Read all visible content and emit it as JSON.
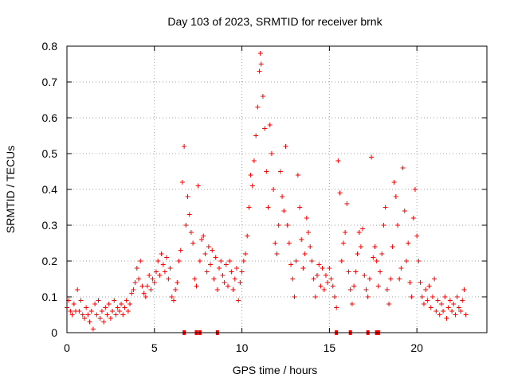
{
  "chart_data": {
    "type": "scatter",
    "title": "Day 103 of 2023, SRMTID for receiver brnk",
    "xlabel": "GPS time / hours",
    "ylabel": "SRMTID / TECUs",
    "xlim": [
      0,
      24
    ],
    "ylim": [
      0,
      0.8
    ],
    "xticks": [
      0,
      5,
      10,
      15,
      20
    ],
    "xtick_labels": [
      "0",
      "5",
      "10",
      "15",
      "20"
    ],
    "yticks": [
      0,
      0.1,
      0.2,
      0.3,
      0.4,
      0.5,
      0.6,
      0.7,
      0.8
    ],
    "ytick_labels": [
      "0",
      "0.1",
      "0.2",
      "0.3",
      "0.4",
      "0.5",
      "0.6",
      "0.7",
      "0.8"
    ],
    "grid": true,
    "color": "#ff0000",
    "marker": "plus",
    "series": [
      {
        "name": "SRMTID",
        "points": [
          [
            0.0,
            0.07
          ],
          [
            0.1,
            0.09
          ],
          [
            0.2,
            0.06
          ],
          [
            0.3,
            0.05
          ],
          [
            0.4,
            0.08
          ],
          [
            0.5,
            0.06
          ],
          [
            0.6,
            0.12
          ],
          [
            0.7,
            0.06
          ],
          [
            0.8,
            0.09
          ],
          [
            0.9,
            0.05
          ],
          [
            1.0,
            0.04
          ],
          [
            1.1,
            0.07
          ],
          [
            1.2,
            0.05
          ],
          [
            1.3,
            0.03
          ],
          [
            1.4,
            0.06
          ],
          [
            1.5,
            0.01
          ],
          [
            1.6,
            0.08
          ],
          [
            1.7,
            0.05
          ],
          [
            1.8,
            0.09
          ],
          [
            1.9,
            0.04
          ],
          [
            2.0,
            0.06
          ],
          [
            2.1,
            0.03
          ],
          [
            2.2,
            0.07
          ],
          [
            2.3,
            0.05
          ],
          [
            2.4,
            0.08
          ],
          [
            2.5,
            0.04
          ],
          [
            2.6,
            0.06
          ],
          [
            2.7,
            0.09
          ],
          [
            2.8,
            0.05
          ],
          [
            2.9,
            0.07
          ],
          [
            3.0,
            0.06
          ],
          [
            3.1,
            0.08
          ],
          [
            3.2,
            0.05
          ],
          [
            3.3,
            0.07
          ],
          [
            3.4,
            0.09
          ],
          [
            3.5,
            0.06
          ],
          [
            3.6,
            0.08
          ],
          [
            3.7,
            0.11
          ],
          [
            3.8,
            0.12
          ],
          [
            3.9,
            0.14
          ],
          [
            4.0,
            0.18
          ],
          [
            4.1,
            0.15
          ],
          [
            4.2,
            0.2
          ],
          [
            4.3,
            0.13
          ],
          [
            4.4,
            0.11
          ],
          [
            4.5,
            0.1
          ],
          [
            4.6,
            0.13
          ],
          [
            4.7,
            0.16
          ],
          [
            4.8,
            0.12
          ],
          [
            4.9,
            0.15
          ],
          [
            5.0,
            0.14
          ],
          [
            5.1,
            0.17
          ],
          [
            5.2,
            0.2
          ],
          [
            5.3,
            0.16
          ],
          [
            5.4,
            0.22
          ],
          [
            5.5,
            0.19
          ],
          [
            5.6,
            0.17
          ],
          [
            5.7,
            0.21
          ],
          [
            5.8,
            0.15
          ],
          [
            5.9,
            0.18
          ],
          [
            6.0,
            0.1
          ],
          [
            6.1,
            0.09
          ],
          [
            6.2,
            0.12
          ],
          [
            6.3,
            0.14
          ],
          [
            6.4,
            0.2
          ],
          [
            6.5,
            0.23
          ],
          [
            6.6,
            0.42
          ],
          [
            6.7,
            0.52
          ],
          [
            6.8,
            0.3
          ],
          [
            6.9,
            0.38
          ],
          [
            7.0,
            0.33
          ],
          [
            7.1,
            0.28
          ],
          [
            7.2,
            0.25
          ],
          [
            7.3,
            0.15
          ],
          [
            7.4,
            0.13
          ],
          [
            7.5,
            0.41
          ],
          [
            7.6,
            0.2
          ],
          [
            7.7,
            0.26
          ],
          [
            7.8,
            0.27
          ],
          [
            7.9,
            0.22
          ],
          [
            8.0,
            0.17
          ],
          [
            8.1,
            0.24
          ],
          [
            8.2,
            0.19
          ],
          [
            8.3,
            0.23
          ],
          [
            8.4,
            0.15
          ],
          [
            8.5,
            0.21
          ],
          [
            8.6,
            0.12
          ],
          [
            8.7,
            0.18
          ],
          [
            8.8,
            0.2
          ],
          [
            8.9,
            0.16
          ],
          [
            9.0,
            0.14
          ],
          [
            9.1,
            0.19
          ],
          [
            9.2,
            0.13
          ],
          [
            9.3,
            0.2
          ],
          [
            9.4,
            0.17
          ],
          [
            9.5,
            0.12
          ],
          [
            9.6,
            0.15
          ],
          [
            9.7,
            0.18
          ],
          [
            9.8,
            0.09
          ],
          [
            9.9,
            0.14
          ],
          [
            10.0,
            0.17
          ],
          [
            10.1,
            0.2
          ],
          [
            10.2,
            0.22
          ],
          [
            10.3,
            0.27
          ],
          [
            10.4,
            0.35
          ],
          [
            10.5,
            0.44
          ],
          [
            10.6,
            0.41
          ],
          [
            10.7,
            0.48
          ],
          [
            10.8,
            0.55
          ],
          [
            10.9,
            0.63
          ],
          [
            11.0,
            0.73
          ],
          [
            11.05,
            0.78
          ],
          [
            11.1,
            0.75
          ],
          [
            11.2,
            0.66
          ],
          [
            11.3,
            0.57
          ],
          [
            11.4,
            0.45
          ],
          [
            11.5,
            0.35
          ],
          [
            11.6,
            0.58
          ],
          [
            11.7,
            0.5
          ],
          [
            11.8,
            0.4
          ],
          [
            11.9,
            0.25
          ],
          [
            12.0,
            0.22
          ],
          [
            12.1,
            0.3
          ],
          [
            12.2,
            0.45
          ],
          [
            12.3,
            0.38
          ],
          [
            12.4,
            0.34
          ],
          [
            12.5,
            0.52
          ],
          [
            12.6,
            0.3
          ],
          [
            12.7,
            0.25
          ],
          [
            12.8,
            0.19
          ],
          [
            12.9,
            0.15
          ],
          [
            13.0,
            0.1
          ],
          [
            13.1,
            0.2
          ],
          [
            13.2,
            0.44
          ],
          [
            13.3,
            0.35
          ],
          [
            13.4,
            0.26
          ],
          [
            13.5,
            0.18
          ],
          [
            13.6,
            0.22
          ],
          [
            13.7,
            0.32
          ],
          [
            13.8,
            0.28
          ],
          [
            13.9,
            0.24
          ],
          [
            14.0,
            0.2
          ],
          [
            14.1,
            0.15
          ],
          [
            14.2,
            0.1
          ],
          [
            14.3,
            0.16
          ],
          [
            14.4,
            0.19
          ],
          [
            14.5,
            0.13
          ],
          [
            14.6,
            0.18
          ],
          [
            14.7,
            0.12
          ],
          [
            14.8,
            0.16
          ],
          [
            14.9,
            0.14
          ],
          [
            15.0,
            0.18
          ],
          [
            15.1,
            0.15
          ],
          [
            15.2,
            0.13
          ],
          [
            15.3,
            0.1
          ],
          [
            15.4,
            0.07
          ],
          [
            15.5,
            0.48
          ],
          [
            15.6,
            0.39
          ],
          [
            15.7,
            0.2
          ],
          [
            15.8,
            0.25
          ],
          [
            15.9,
            0.28
          ],
          [
            16.0,
            0.36
          ],
          [
            16.1,
            0.17
          ],
          [
            16.2,
            0.12
          ],
          [
            16.3,
            0.08
          ],
          [
            16.4,
            0.13
          ],
          [
            16.5,
            0.17
          ],
          [
            16.6,
            0.22
          ],
          [
            16.7,
            0.28
          ],
          [
            16.8,
            0.24
          ],
          [
            16.9,
            0.29
          ],
          [
            17.0,
            0.16
          ],
          [
            17.1,
            0.12
          ],
          [
            17.2,
            0.1
          ],
          [
            17.3,
            0.15
          ],
          [
            17.4,
            0.49
          ],
          [
            17.5,
            0.21
          ],
          [
            17.6,
            0.24
          ],
          [
            17.7,
            0.2
          ],
          [
            17.8,
            0.13
          ],
          [
            17.9,
            0.17
          ],
          [
            18.0,
            0.22
          ],
          [
            18.1,
            0.3
          ],
          [
            18.2,
            0.35
          ],
          [
            18.3,
            0.12
          ],
          [
            18.4,
            0.08
          ],
          [
            18.5,
            0.15
          ],
          [
            18.6,
            0.24
          ],
          [
            18.7,
            0.42
          ],
          [
            18.8,
            0.38
          ],
          [
            18.9,
            0.3
          ],
          [
            19.0,
            0.15
          ],
          [
            19.1,
            0.18
          ],
          [
            19.2,
            0.46
          ],
          [
            19.3,
            0.34
          ],
          [
            19.4,
            0.2
          ],
          [
            19.5,
            0.25
          ],
          [
            19.6,
            0.14
          ],
          [
            19.7,
            0.1
          ],
          [
            19.8,
            0.32
          ],
          [
            19.9,
            0.4
          ],
          [
            20.0,
            0.27
          ],
          [
            20.1,
            0.2
          ],
          [
            20.2,
            0.14
          ],
          [
            20.3,
            0.1
          ],
          [
            20.4,
            0.08
          ],
          [
            20.5,
            0.12
          ],
          [
            20.6,
            0.09
          ],
          [
            20.7,
            0.13
          ],
          [
            20.8,
            0.07
          ],
          [
            20.9,
            0.1
          ],
          [
            21.0,
            0.15
          ],
          [
            21.1,
            0.06
          ],
          [
            21.2,
            0.09
          ],
          [
            21.3,
            0.05
          ],
          [
            21.4,
            0.08
          ],
          [
            21.5,
            0.06
          ],
          [
            21.6,
            0.1
          ],
          [
            21.7,
            0.04
          ],
          [
            21.8,
            0.07
          ],
          [
            21.9,
            0.09
          ],
          [
            22.0,
            0.06
          ],
          [
            22.1,
            0.08
          ],
          [
            22.2,
            0.05
          ],
          [
            22.3,
            0.1
          ],
          [
            22.4,
            0.07
          ],
          [
            22.5,
            0.06
          ],
          [
            22.6,
            0.09
          ],
          [
            22.7,
            0.12
          ],
          [
            22.8,
            0.05
          ]
        ]
      }
    ],
    "gap_markers_x": [
      6.7,
      7.4,
      7.6,
      8.6,
      15.4,
      16.2,
      17.2,
      17.7,
      17.8
    ]
  }
}
